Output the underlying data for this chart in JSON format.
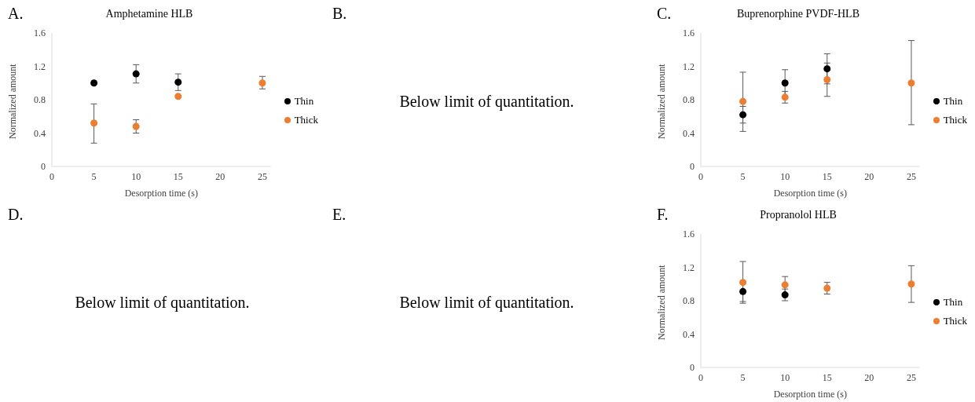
{
  "chart_data": [
    {
      "type": "scatter",
      "title": "Amphetamine HLB",
      "xlabel": "Desorption time (s)",
      "ylabel": "Normalized amount",
      "annotations": [
        "A."
      ],
      "x": [
        5,
        10,
        15,
        25
      ],
      "xlim": [
        0,
        26
      ],
      "xticks": [
        0,
        5,
        10,
        15,
        20,
        25
      ],
      "ylim": [
        0,
        1.6
      ],
      "yticks": [
        0,
        0.4,
        0.8,
        1.2,
        1.6
      ],
      "grid": false,
      "legend": "right",
      "marker": "circle",
      "series": [
        {
          "name": "Thin",
          "color": "#000000",
          "values": [
            1.0,
            1.11,
            1.01,
            null
          ],
          "errors": [
            null,
            0.11,
            0.1,
            null
          ]
        },
        {
          "name": "Thick",
          "color": "#ed7d31",
          "values": [
            0.52,
            0.48,
            0.84,
            1.0
          ],
          "errors": [
            [
              0.28,
              0.75
            ],
            0.08,
            null,
            [
              0.93,
              1.08
            ]
          ]
        }
      ]
    },
    {
      "type": "other",
      "annotations": [
        "B.",
        "Below limit of quantitation."
      ]
    },
    {
      "type": "scatter",
      "title": "Buprenorphine PVDF-HLB",
      "xlabel": "Desorption time (s)",
      "ylabel": "Normalized amount",
      "annotations": [
        "C."
      ],
      "x": [
        5,
        10,
        15,
        25
      ],
      "xlim": [
        0,
        26
      ],
      "xticks": [
        0,
        5,
        10,
        15,
        20,
        25
      ],
      "ylim": [
        0,
        1.6
      ],
      "yticks": [
        0,
        0.4,
        0.8,
        1.2,
        1.6
      ],
      "grid": false,
      "legend": "right",
      "marker": "circle",
      "series": [
        {
          "name": "Thin",
          "color": "#000000",
          "values": [
            0.62,
            1.0,
            1.17,
            null
          ],
          "errors": [
            0.1,
            0.16,
            0.18,
            null
          ]
        },
        {
          "name": "Thick",
          "color": "#ed7d31",
          "values": [
            0.78,
            0.83,
            1.04,
            1.0
          ],
          "errors": [
            [
              0.42,
              1.13
            ],
            0.07,
            [
              0.84,
              1.24
            ],
            [
              0.5,
              1.51
            ]
          ]
        }
      ]
    },
    {
      "type": "other",
      "annotations": [
        "D.",
        "Below limit of quantitation."
      ]
    },
    {
      "type": "other",
      "annotations": [
        "E.",
        "Below limit of quantitation."
      ]
    },
    {
      "type": "scatter",
      "title": "Propranolol HLB",
      "xlabel": "Desorption time (s)",
      "ylabel": "Normalized amount",
      "annotations": [
        "F."
      ],
      "x": [
        5,
        10,
        15,
        25
      ],
      "xlim": [
        0,
        26
      ],
      "xticks": [
        0,
        5,
        10,
        15,
        20,
        25
      ],
      "ylim": [
        0,
        1.6
      ],
      "yticks": [
        0,
        0.4,
        0.8,
        1.2,
        1.6
      ],
      "grid": false,
      "legend": "right",
      "marker": "circle",
      "series": [
        {
          "name": "Thin",
          "color": "#000000",
          "values": [
            0.91,
            0.87,
            null,
            null
          ],
          "errors": [
            0.12,
            0.07,
            null,
            null
          ]
        },
        {
          "name": "Thick",
          "color": "#ed7d31",
          "values": [
            1.02,
            0.99,
            0.95,
            1.0
          ],
          "errors": [
            0.25,
            0.1,
            0.07,
            0.22
          ]
        }
      ]
    }
  ]
}
